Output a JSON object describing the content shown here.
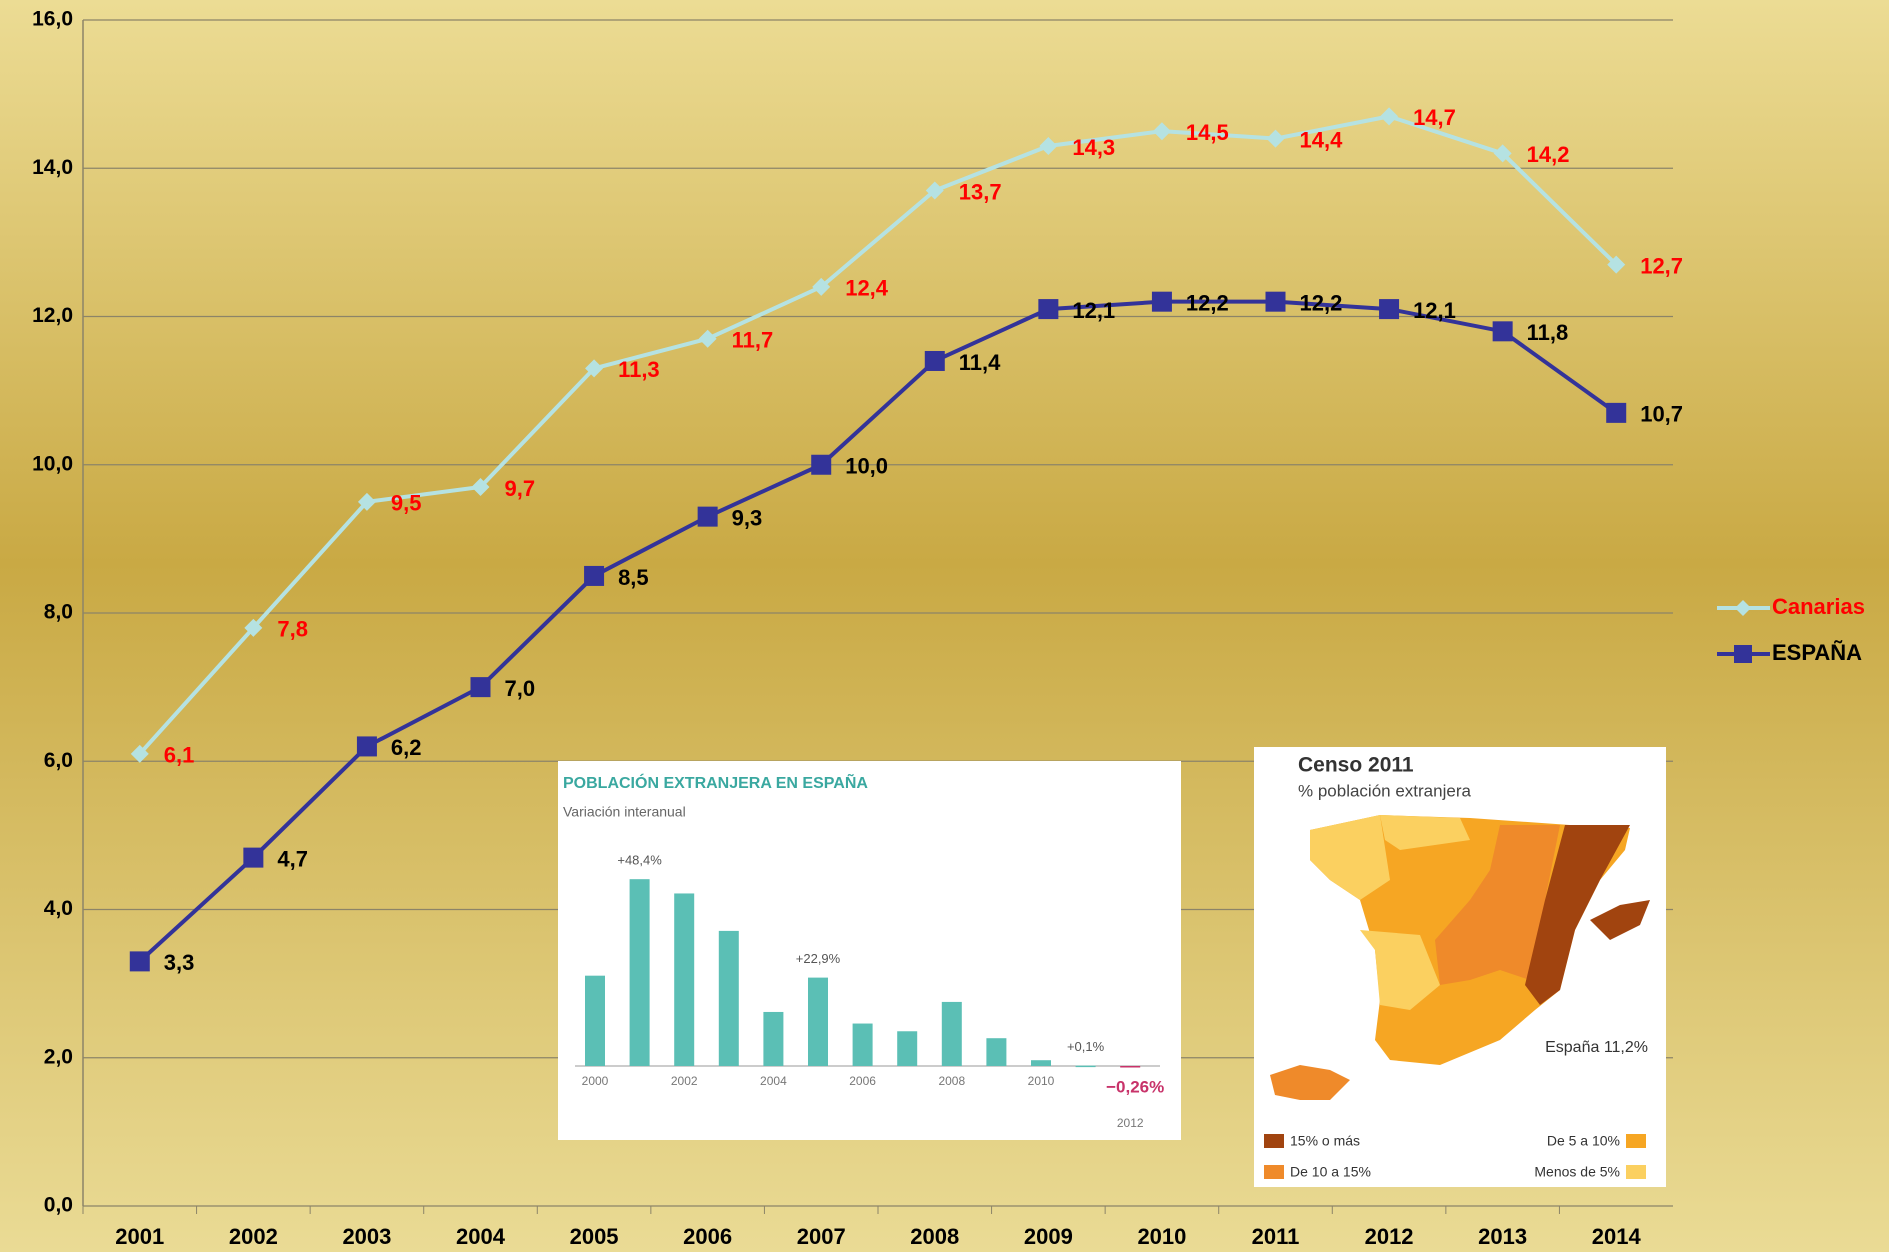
{
  "chart_data": [
    {
      "type": "line",
      "categories": [
        "2001",
        "2002",
        "2003",
        "2004",
        "2005",
        "2006",
        "2007",
        "2008",
        "2009",
        "2010",
        "2011",
        "2012",
        "2013",
        "2014"
      ],
      "series": [
        {
          "name": "Canarias",
          "color": "#b5e2e2",
          "label_color": "#ff0000",
          "marker": "diamond",
          "values": [
            6.1,
            7.8,
            9.5,
            9.7,
            11.3,
            11.7,
            12.4,
            13.7,
            14.3,
            14.5,
            14.4,
            14.7,
            14.2,
            12.7
          ],
          "value_labels": [
            "6,1",
            "7,8",
            "9,5",
            "9,7",
            "11,3",
            "11,7",
            "12,4",
            "13,7",
            "14,3",
            "14,5",
            "14,4",
            "14,7",
            "14,2",
            "12,7"
          ]
        },
        {
          "name": "ESPAÑA",
          "color": "#333399",
          "label_color": "#000000",
          "marker": "square",
          "values": [
            3.3,
            4.7,
            6.2,
            7.0,
            8.5,
            9.3,
            10.0,
            11.4,
            12.1,
            12.2,
            12.2,
            12.1,
            11.8,
            10.7
          ],
          "value_labels": [
            "3,3",
            "4,7",
            "6,2",
            "7,0",
            "8,5",
            "9,3",
            "10,0",
            "11,4",
            "12,1",
            "12,2",
            "12,2",
            "12,1",
            "11,8",
            "10,7"
          ]
        }
      ],
      "ylim": [
        0,
        16
      ],
      "yticks": [
        {
          "value": 0,
          "label": "0,0"
        },
        {
          "value": 2,
          "label": "2,0"
        },
        {
          "value": 4,
          "label": "4,0"
        },
        {
          "value": 6,
          "label": "6,0"
        },
        {
          "value": 8,
          "label": "8,0"
        },
        {
          "value": 10,
          "label": "10,0"
        },
        {
          "value": 12,
          "label": "12,0"
        },
        {
          "value": 14,
          "label": "14,0"
        },
        {
          "value": 16,
          "label": "16,0"
        }
      ],
      "grid": true,
      "legend": "right"
    },
    {
      "type": "bar",
      "title": "POBLACIÓN EXTRANJERA EN ESPAÑA",
      "subtitle": "Variación interanual",
      "categories": [
        "2000",
        null,
        "2002",
        null,
        "2004",
        null,
        "2006",
        null,
        "2008",
        null,
        "2010",
        null,
        "2012"
      ],
      "values": [
        23.4,
        48.4,
        44.7,
        35,
        14,
        22.9,
        11,
        9,
        16.6,
        7.2,
        1.5,
        0.1,
        -0.26
      ],
      "value_labels": [
        null,
        "+48,4%",
        null,
        null,
        null,
        "+22,9%",
        null,
        null,
        null,
        null,
        null,
        "+0,1%",
        "−0,26%"
      ],
      "color": "#5bbfb5",
      "negative_color": "#c8336a"
    }
  ],
  "map": {
    "title": "Censo 2011",
    "subtitle": "% población extranjera",
    "total": "España 11,2%",
    "legend": [
      "15% o más",
      "De 10 a 15%",
      "De 5 a 10%",
      "Menos de 5%"
    ]
  }
}
